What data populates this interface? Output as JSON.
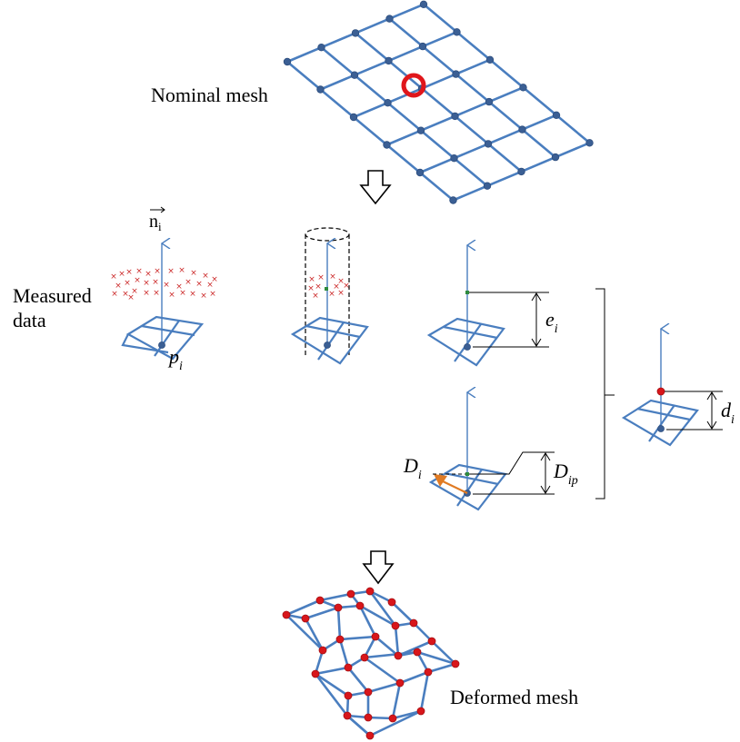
{
  "labels": {
    "nominal_mesh": "Nominal mesh",
    "measured_data_line1": "Measured",
    "measured_data_line2": "data",
    "normal_vector": "n",
    "normal_vector_sub": "i",
    "point_p": "p",
    "point_p_sub": "i",
    "error_e": "e",
    "error_e_sub": "i",
    "offset_D": "D",
    "offset_D_sub": "i",
    "offset_Dip": "D",
    "offset_Dip_sub": "ip",
    "displacement_d": "d",
    "displacement_d_sub": "i",
    "deformed_mesh": "Deformed mesh"
  },
  "colors": {
    "mesh_blue": "#4a7ebf",
    "node_blue": "#3b5f94",
    "node_red": "#d8161b",
    "highlight_red": "#e0161b",
    "measurement_red": "#cc2a2a",
    "point_green": "#2e8b3e",
    "vector_orange": "#e07b24"
  }
}
